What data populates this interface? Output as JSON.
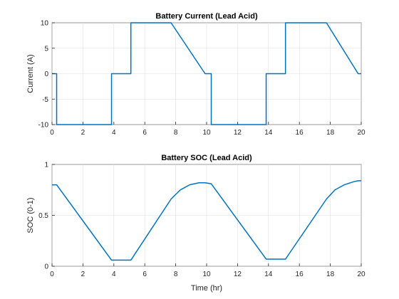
{
  "colors": {
    "series": "#0072bd",
    "grid": "#dfdfdf",
    "axis": "#262626",
    "background": "#ffffff"
  },
  "chart_data": [
    {
      "type": "line",
      "title": "Battery Current (Lead Acid)",
      "xlabel": "",
      "ylabel": "Current (A)",
      "xlim": [
        0,
        20
      ],
      "ylim": [
        -10,
        10
      ],
      "xticks": [
        0,
        2,
        4,
        6,
        8,
        10,
        12,
        14,
        16,
        18,
        20
      ],
      "yticks": [
        -10,
        -5,
        0,
        5,
        10
      ],
      "grid": true,
      "series": [
        {
          "x": [
            0,
            0.3,
            0.3,
            0.35,
            0.35,
            3.85,
            3.85,
            3.9,
            3.9,
            5.1,
            5.1,
            7.7,
            9.9,
            10.3,
            10.3,
            13.85,
            13.85,
            13.9,
            13.9,
            15.1,
            15.1,
            17.75,
            19.8,
            20
          ],
          "y": [
            0,
            0,
            -10,
            -10,
            -10,
            -10,
            0,
            0,
            0,
            0,
            10,
            10,
            0,
            0,
            -10,
            -10,
            0,
            0,
            0,
            0,
            10,
            10,
            0,
            0
          ]
        }
      ]
    },
    {
      "type": "line",
      "title": "Battery SOC (Lead Acid)",
      "xlabel": "Time (hr)",
      "ylabel": "SOC (0-1)",
      "xlim": [
        0,
        20
      ],
      "ylim": [
        0,
        1
      ],
      "xticks": [
        0,
        2,
        4,
        6,
        8,
        10,
        12,
        14,
        16,
        18,
        20
      ],
      "yticks": [
        0,
        0.5,
        1
      ],
      "grid": true,
      "series": [
        {
          "x": [
            0,
            0.3,
            3.85,
            5.1,
            7.7,
            8.3,
            8.9,
            9.5,
            9.9,
            10.3,
            13.85,
            15.1,
            17.75,
            18.3,
            18.9,
            19.5,
            19.8,
            20
          ],
          "y": [
            0.8,
            0.8,
            0.06,
            0.06,
            0.66,
            0.75,
            0.8,
            0.82,
            0.82,
            0.81,
            0.07,
            0.07,
            0.66,
            0.75,
            0.8,
            0.83,
            0.84,
            0.84
          ]
        }
      ]
    }
  ]
}
